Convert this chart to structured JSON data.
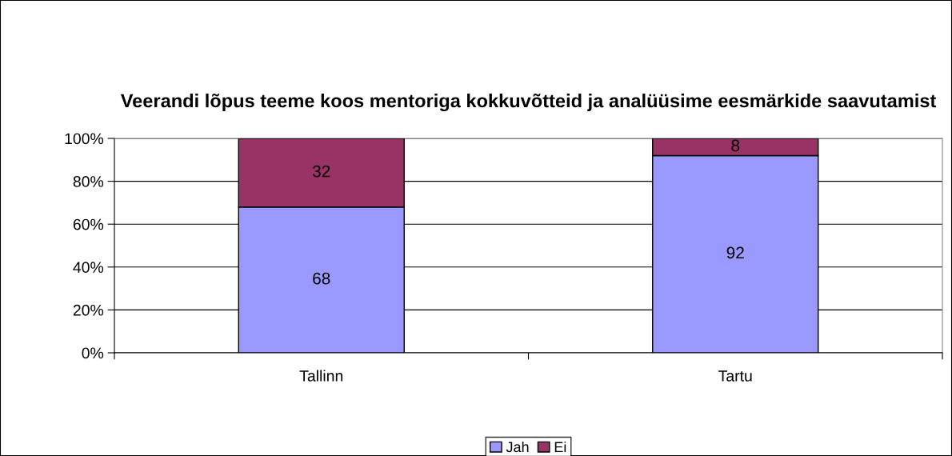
{
  "chart_data": {
    "type": "bar",
    "title": "Veerandi lõpus teeme koos mentoriga kokkuvõtteid ja analüüsime eesmärkide saavutamist",
    "categories": [
      "Tallinn",
      "Tartu"
    ],
    "series": [
      {
        "name": "Jah",
        "color": "#9999ff",
        "values": [
          68,
          92
        ]
      },
      {
        "name": "Ei",
        "color": "#993366",
        "values": [
          32,
          8
        ]
      }
    ],
    "stacked": true,
    "data_labels": true,
    "ylim": [
      0,
      100
    ],
    "yticks": [
      {
        "value": 0,
        "label": "0%"
      },
      {
        "value": 20,
        "label": "20%"
      },
      {
        "value": 40,
        "label": "40%"
      },
      {
        "value": 60,
        "label": "60%"
      },
      {
        "value": 80,
        "label": "80%"
      },
      {
        "value": 100,
        "label": "100%"
      }
    ],
    "grid": "y",
    "legend": "bottom"
  }
}
